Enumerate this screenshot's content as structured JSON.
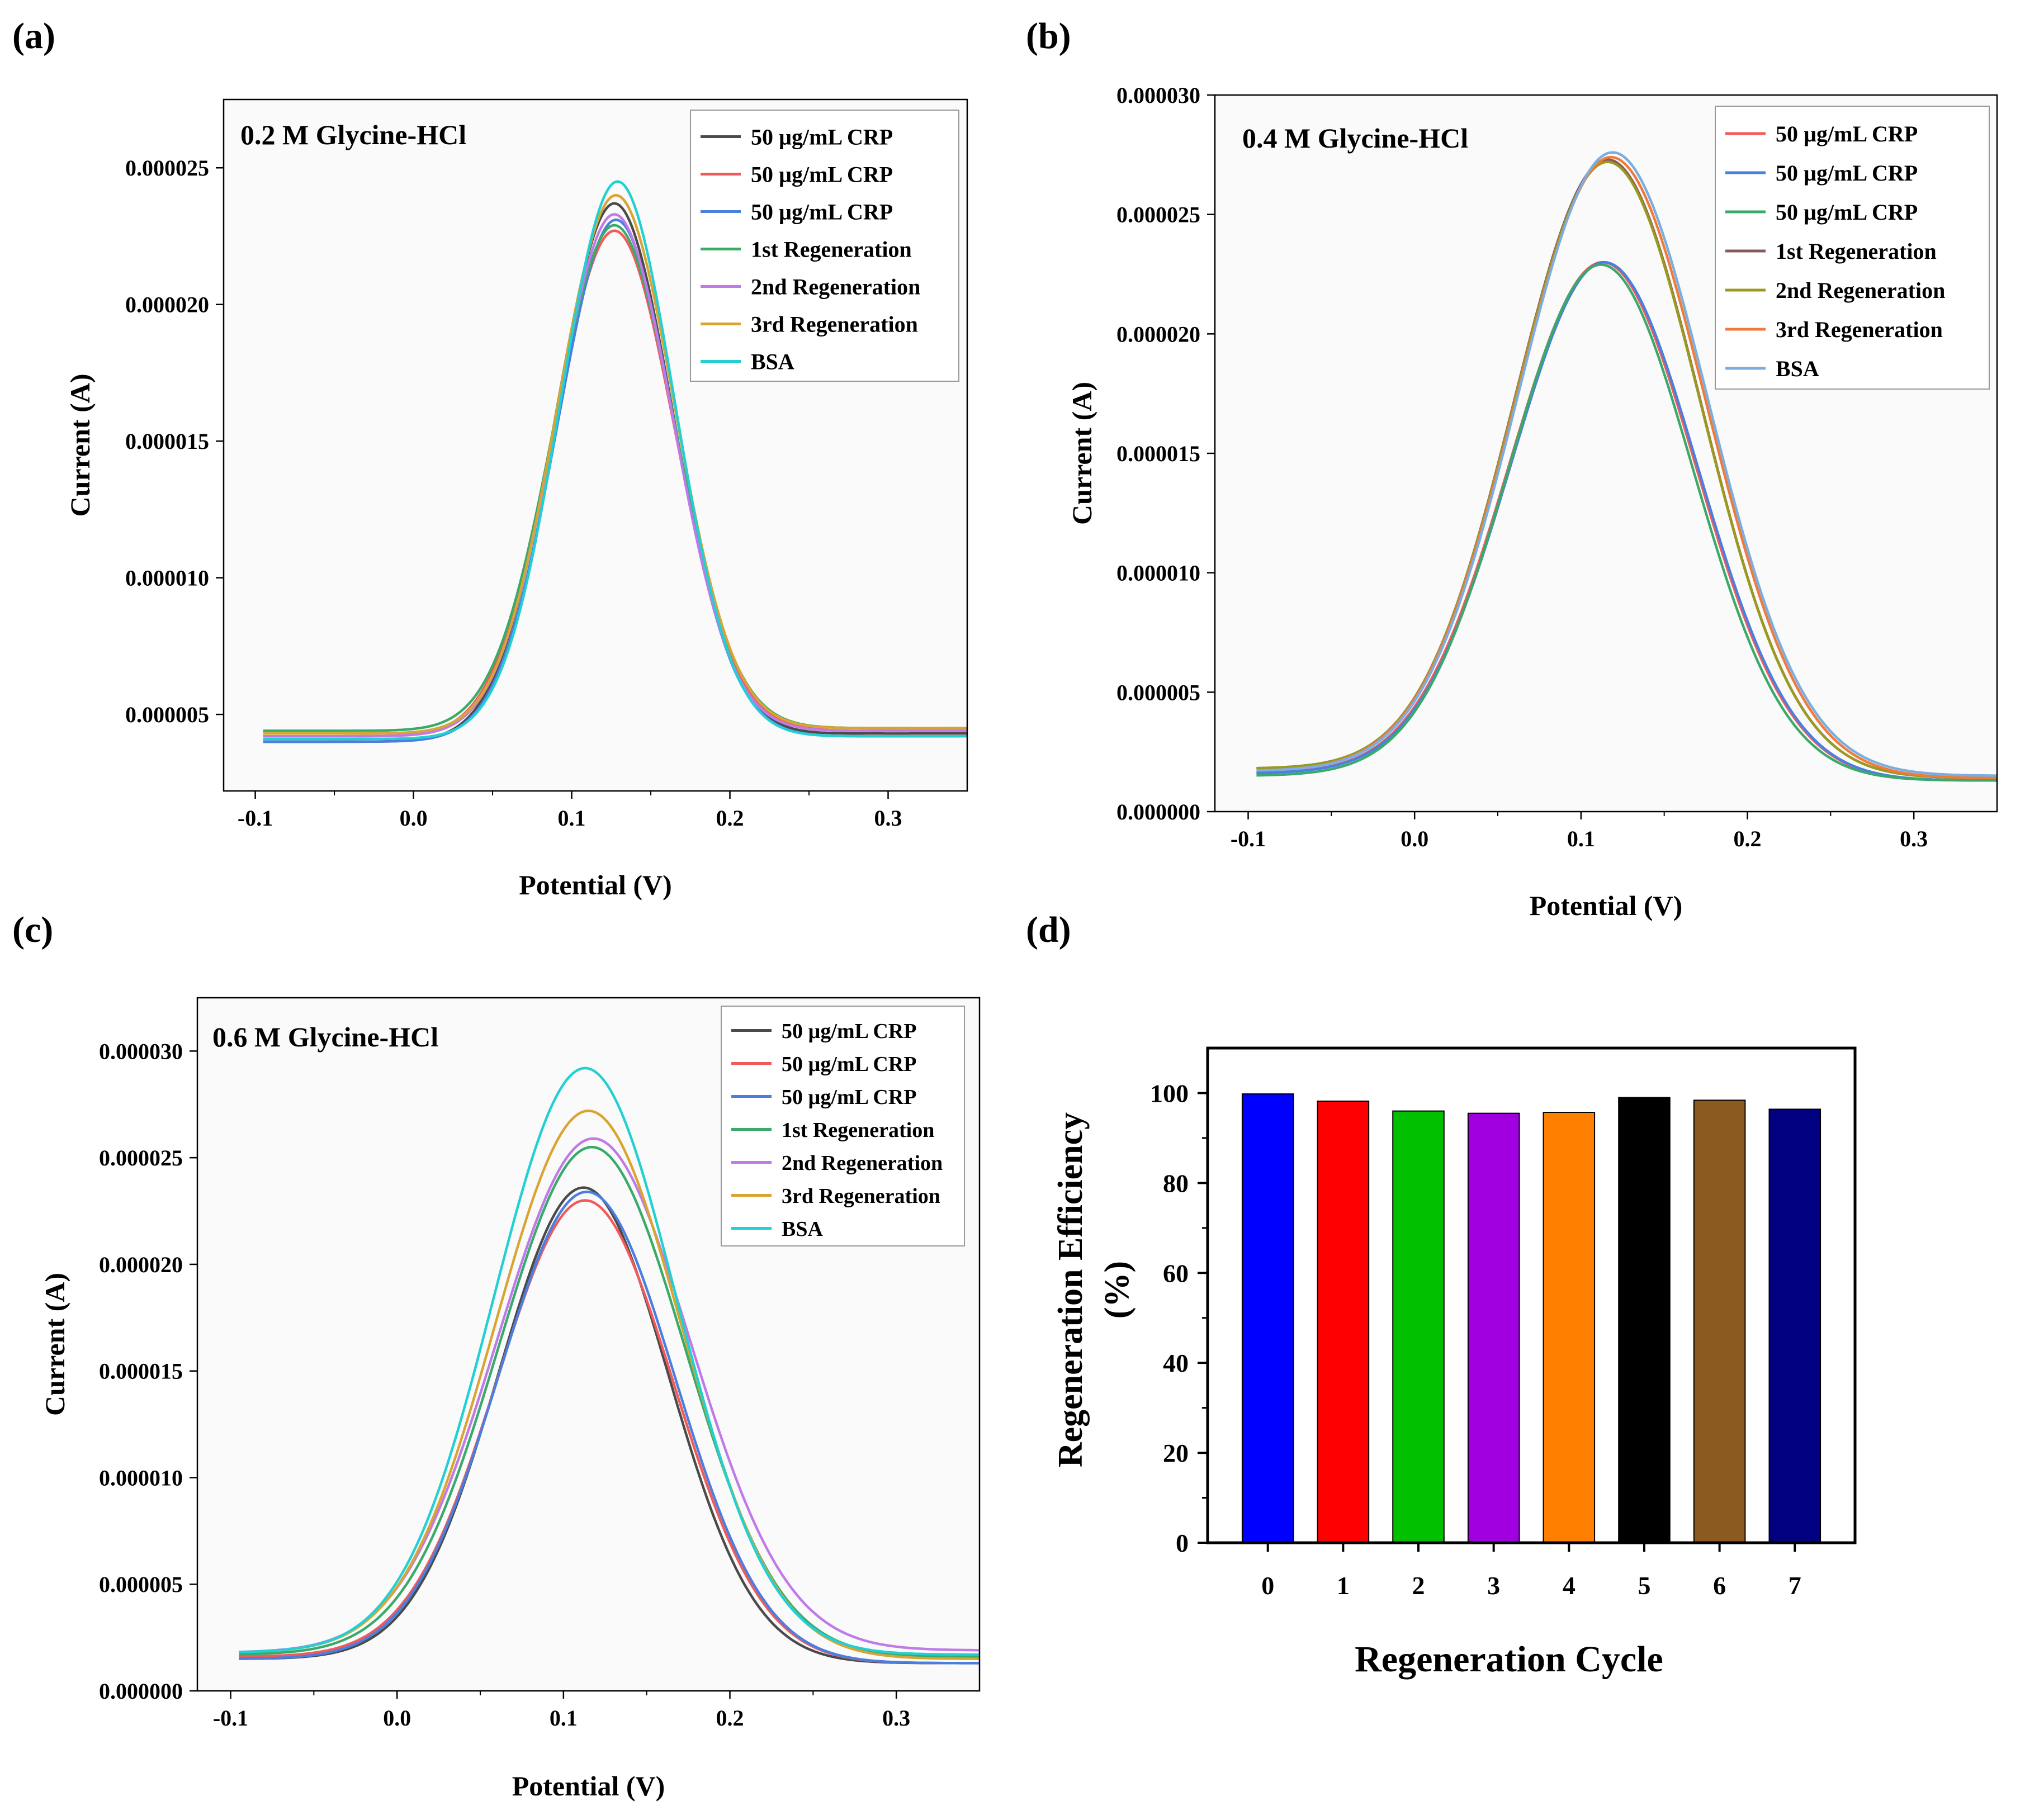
{
  "figure": {
    "panels": [
      "(a)",
      "(b)",
      "(c)",
      "(d)"
    ]
  },
  "chart_data": [
    {
      "id": "a",
      "type": "line",
      "panel_label": "(a)",
      "annotation": "0.2 M Glycine-HCl",
      "xlabel": "Potential (V)",
      "ylabel": "Current (A)",
      "xlim": [
        -0.12,
        0.35
      ],
      "ylim": [
        2.2e-06,
        2.75e-05
      ],
      "xticks": [
        -0.1,
        0.0,
        0.1,
        0.2,
        0.3
      ],
      "xtick_labels": [
        "-0.1",
        "0.0",
        "0.1",
        "0.2",
        "0.3"
      ],
      "yticks": [
        5e-06,
        1e-05,
        1.5e-05,
        2e-05,
        2.5e-05
      ],
      "ytick_labels": [
        "0.000005",
        "0.000010",
        "0.000015",
        "0.000020",
        "0.000025"
      ],
      "legend_position": "top-right",
      "grid": false,
      "series": [
        {
          "name": "50 µg/mL CRP",
          "color": "#4a4a4a",
          "peak_x": 0.127,
          "peak_y": 2.37e-05,
          "sigma": 0.037,
          "baseline_left": 4e-06,
          "baseline_right": 4.3e-06
        },
        {
          "name": "50 µg/mL CRP",
          "color": "#f25a5a",
          "peak_x": 0.127,
          "peak_y": 2.27e-05,
          "sigma": 0.038,
          "baseline_left": 4.2e-06,
          "baseline_right": 4.4e-06
        },
        {
          "name": "50 µg/mL CRP",
          "color": "#4a7fe0",
          "peak_x": 0.128,
          "peak_y": 2.31e-05,
          "sigma": 0.037,
          "baseline_left": 4e-06,
          "baseline_right": 4.2e-06
        },
        {
          "name": "1st Regeneration",
          "color": "#3aaa6a",
          "peak_x": 0.127,
          "peak_y": 2.29e-05,
          "sigma": 0.038,
          "baseline_left": 4.4e-06,
          "baseline_right": 4.5e-06
        },
        {
          "name": "2nd Regeneration",
          "color": "#c07ae8",
          "peak_x": 0.127,
          "peak_y": 2.33e-05,
          "sigma": 0.037,
          "baseline_left": 4.2e-06,
          "baseline_right": 4.4e-06
        },
        {
          "name": "3rd Regeneration",
          "color": "#d8a532",
          "peak_x": 0.128,
          "peak_y": 2.4e-05,
          "sigma": 0.037,
          "baseline_left": 4.3e-06,
          "baseline_right": 4.5e-06
        },
        {
          "name": "BSA",
          "color": "#22d0d4",
          "peak_x": 0.129,
          "peak_y": 2.45e-05,
          "sigma": 0.036,
          "baseline_left": 4.1e-06,
          "baseline_right": 4.2e-06
        }
      ]
    },
    {
      "id": "b",
      "type": "line",
      "panel_label": "(b)",
      "annotation": "0.4 M Glycine-HCl",
      "xlabel": "Potential (V)",
      "ylabel": "Current (A)",
      "xlim": [
        -0.12,
        0.35
      ],
      "ylim": [
        0.0,
        3e-05
      ],
      "xticks": [
        -0.1,
        0.0,
        0.1,
        0.2,
        0.3
      ],
      "xtick_labels": [
        "-0.1",
        "0.0",
        "0.1",
        "0.2",
        "0.3"
      ],
      "yticks": [
        0.0,
        5e-06,
        1e-05,
        1.5e-05,
        2e-05,
        2.5e-05,
        3e-05
      ],
      "ytick_labels": [
        "0.000000",
        "0.000005",
        "0.000010",
        "0.000015",
        "0.000020",
        "0.000025",
        "0.000030"
      ],
      "legend_position": "top-right",
      "grid": false,
      "series": [
        {
          "name": "50 µg/mL CRP",
          "color": "#f25a5a",
          "peak_x": 0.113,
          "peak_y": 2.3e-05,
          "sigma": 0.056,
          "baseline_left": 1.6e-06,
          "baseline_right": 1.3e-06
        },
        {
          "name": "50 µg/mL CRP",
          "color": "#4a7fe0",
          "peak_x": 0.114,
          "peak_y": 2.3e-05,
          "sigma": 0.056,
          "baseline_left": 1.6e-06,
          "baseline_right": 1.3e-06
        },
        {
          "name": "50 µg/mL CRP",
          "color": "#3aaa6a",
          "peak_x": 0.112,
          "peak_y": 2.29e-05,
          "sigma": 0.055,
          "baseline_left": 1.5e-06,
          "baseline_right": 1.3e-06
        },
        {
          "name": "1st Regeneration",
          "color": "#8a5858",
          "peak_x": 0.116,
          "peak_y": 2.73e-05,
          "sigma": 0.056,
          "baseline_left": 1.8e-06,
          "baseline_right": 1.4e-06
        },
        {
          "name": "2nd Regeneration",
          "color": "#9a9a1e",
          "peak_x": 0.116,
          "peak_y": 2.72e-05,
          "sigma": 0.056,
          "baseline_left": 1.8e-06,
          "baseline_right": 1.4e-06
        },
        {
          "name": "3rd Regeneration",
          "color": "#f07a3a",
          "peak_x": 0.118,
          "peak_y": 2.74e-05,
          "sigma": 0.057,
          "baseline_left": 1.7e-06,
          "baseline_right": 1.4e-06
        },
        {
          "name": "BSA",
          "color": "#7aaee0",
          "peak_x": 0.119,
          "peak_y": 2.76e-05,
          "sigma": 0.057,
          "baseline_left": 1.7e-06,
          "baseline_right": 1.5e-06
        }
      ]
    },
    {
      "id": "c",
      "type": "line",
      "panel_label": "(c)",
      "annotation": "0.6 M Glycine-HCl",
      "xlabel": "Potential (V)",
      "ylabel": "Current (A)",
      "xlim": [
        -0.12,
        0.35
      ],
      "ylim": [
        0.0,
        3.25e-05
      ],
      "xticks": [
        -0.1,
        0.0,
        0.1,
        0.2,
        0.3
      ],
      "xtick_labels": [
        "-0.1",
        "0.0",
        "0.1",
        "0.2",
        "0.3"
      ],
      "yticks": [
        0.0,
        5e-06,
        1e-05,
        1.5e-05,
        2e-05,
        2.5e-05,
        3e-05
      ],
      "ytick_labels": [
        "0.000000",
        "0.000005",
        "0.000010",
        "0.000015",
        "0.000020",
        "0.000025",
        "0.000030"
      ],
      "legend_position": "top-right",
      "grid": false,
      "series": [
        {
          "name": "50 µg/mL CRP",
          "color": "#4a4a4a",
          "peak_x": 0.112,
          "peak_y": 2.36e-05,
          "sigma": 0.051,
          "baseline_left": 1.5e-06,
          "baseline_right": 1.3e-06
        },
        {
          "name": "50 µg/mL CRP",
          "color": "#f25a5a",
          "peak_x": 0.113,
          "peak_y": 2.3e-05,
          "sigma": 0.053,
          "baseline_left": 1.6e-06,
          "baseline_right": 1.3e-06
        },
        {
          "name": "50 µg/mL CRP",
          "color": "#4a7fe0",
          "peak_x": 0.114,
          "peak_y": 2.34e-05,
          "sigma": 0.053,
          "baseline_left": 1.5e-06,
          "baseline_right": 1.3e-06
        },
        {
          "name": "1st Regeneration",
          "color": "#3aaa6a",
          "peak_x": 0.117,
          "peak_y": 2.55e-05,
          "sigma": 0.056,
          "baseline_left": 1.7e-06,
          "baseline_right": 1.6e-06
        },
        {
          "name": "2nd Regeneration",
          "color": "#c07ae8",
          "peak_x": 0.118,
          "peak_y": 2.59e-05,
          "sigma": 0.058,
          "baseline_left": 1.8e-06,
          "baseline_right": 1.9e-06
        },
        {
          "name": "3rd Regeneration",
          "color": "#d8a532",
          "peak_x": 0.115,
          "peak_y": 2.72e-05,
          "sigma": 0.056,
          "baseline_left": 1.8e-06,
          "baseline_right": 1.5e-06
        },
        {
          "name": "BSA",
          "color": "#22d0d4",
          "peak_x": 0.113,
          "peak_y": 2.92e-05,
          "sigma": 0.055,
          "baseline_left": 1.8e-06,
          "baseline_right": 1.7e-06
        }
      ]
    },
    {
      "id": "d",
      "type": "bar",
      "panel_label": "(d)",
      "xlabel": "Regeneration Cycle",
      "ylabel_line1": "Regeneration Efficiency",
      "ylabel_line2": "(%)",
      "categories": [
        "0",
        "1",
        "2",
        "3",
        "4",
        "5",
        "6",
        "7"
      ],
      "values": [
        99.8,
        98.2,
        96.0,
        95.5,
        95.7,
        99.0,
        98.4,
        96.4
      ],
      "colors": [
        "#0000ff",
        "#ff0000",
        "#00c000",
        "#a000e0",
        "#ff8000",
        "#000000",
        "#8b5a1e",
        "#000080"
      ],
      "ylim": [
        0,
        110
      ],
      "yticks": [
        0,
        20,
        40,
        60,
        80,
        100
      ],
      "ytick_labels": [
        "0",
        "20",
        "40",
        "60",
        "80",
        "100"
      ],
      "grid": false
    }
  ]
}
